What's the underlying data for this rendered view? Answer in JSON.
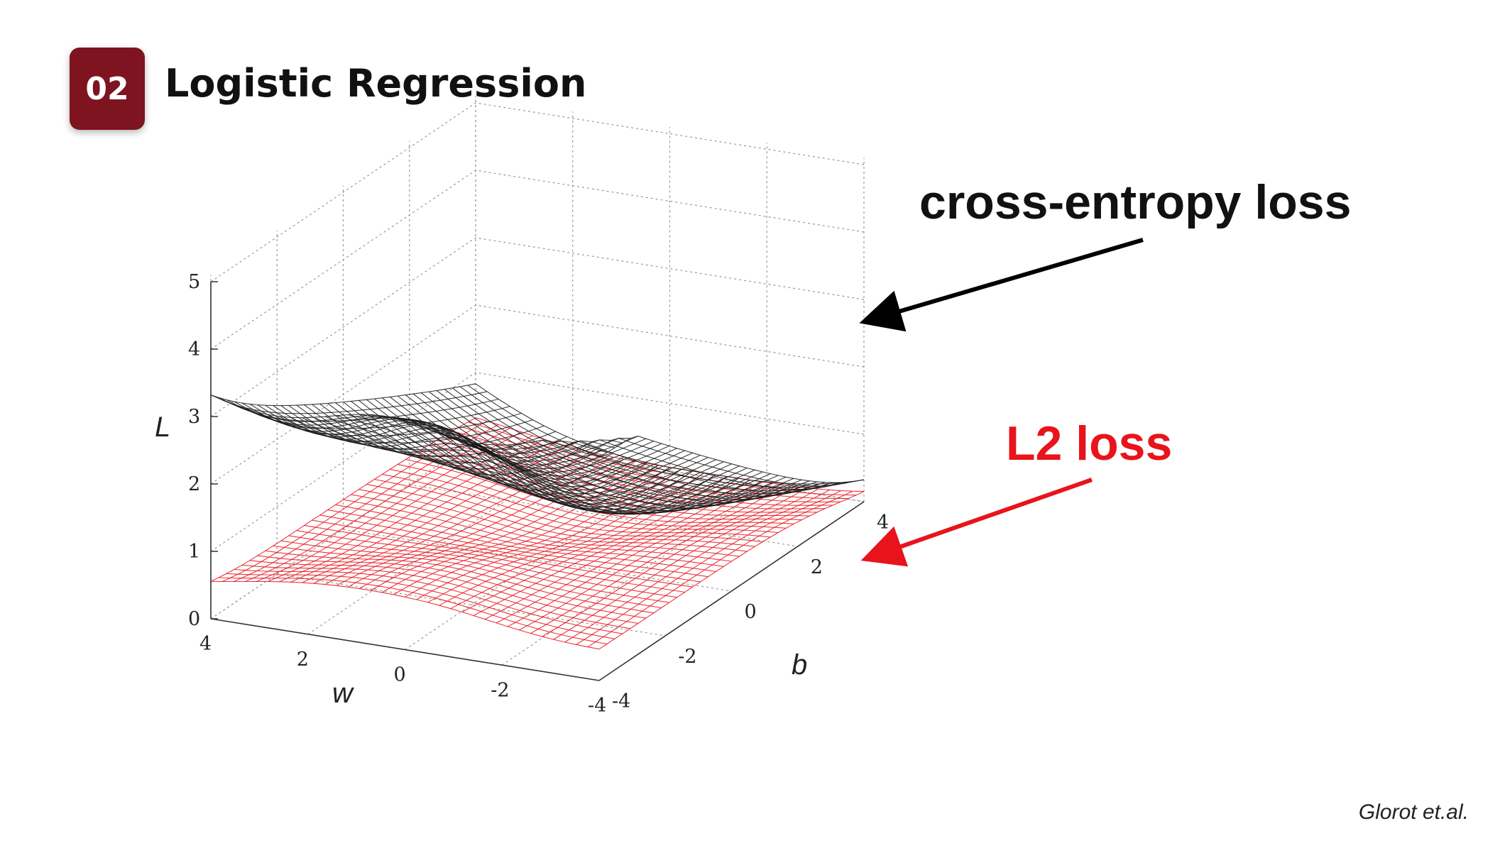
{
  "slide": {
    "number": "02",
    "title": "Logistic Regression",
    "credit": "Glorot et.al."
  },
  "colors": {
    "badge": "#7e1420",
    "cross_entropy": "#1a1a1a",
    "l2": "#e8141c"
  },
  "chart_data": {
    "type": "surface",
    "xlabel": "w",
    "ylabel": "b",
    "zlabel": "L",
    "x_ticks": [
      "4",
      "2",
      "0",
      "-2",
      "-4"
    ],
    "y_ticks": [
      "-4",
      "-2",
      "0",
      "2",
      "4"
    ],
    "z_ticks": [
      "0",
      "1",
      "2",
      "3",
      "4",
      "5"
    ],
    "xlim": [
      -4,
      4
    ],
    "ylim": [
      -4,
      4
    ],
    "zlim": [
      0,
      5
    ],
    "grid": true,
    "series": [
      {
        "name": "cross-entropy loss",
        "color": "#1a1a1a"
      },
      {
        "name": "L2 loss",
        "color": "#e8141c"
      }
    ],
    "annotations": {
      "cross_entropy": "cross-entropy loss",
      "l2": "L2 loss"
    }
  }
}
